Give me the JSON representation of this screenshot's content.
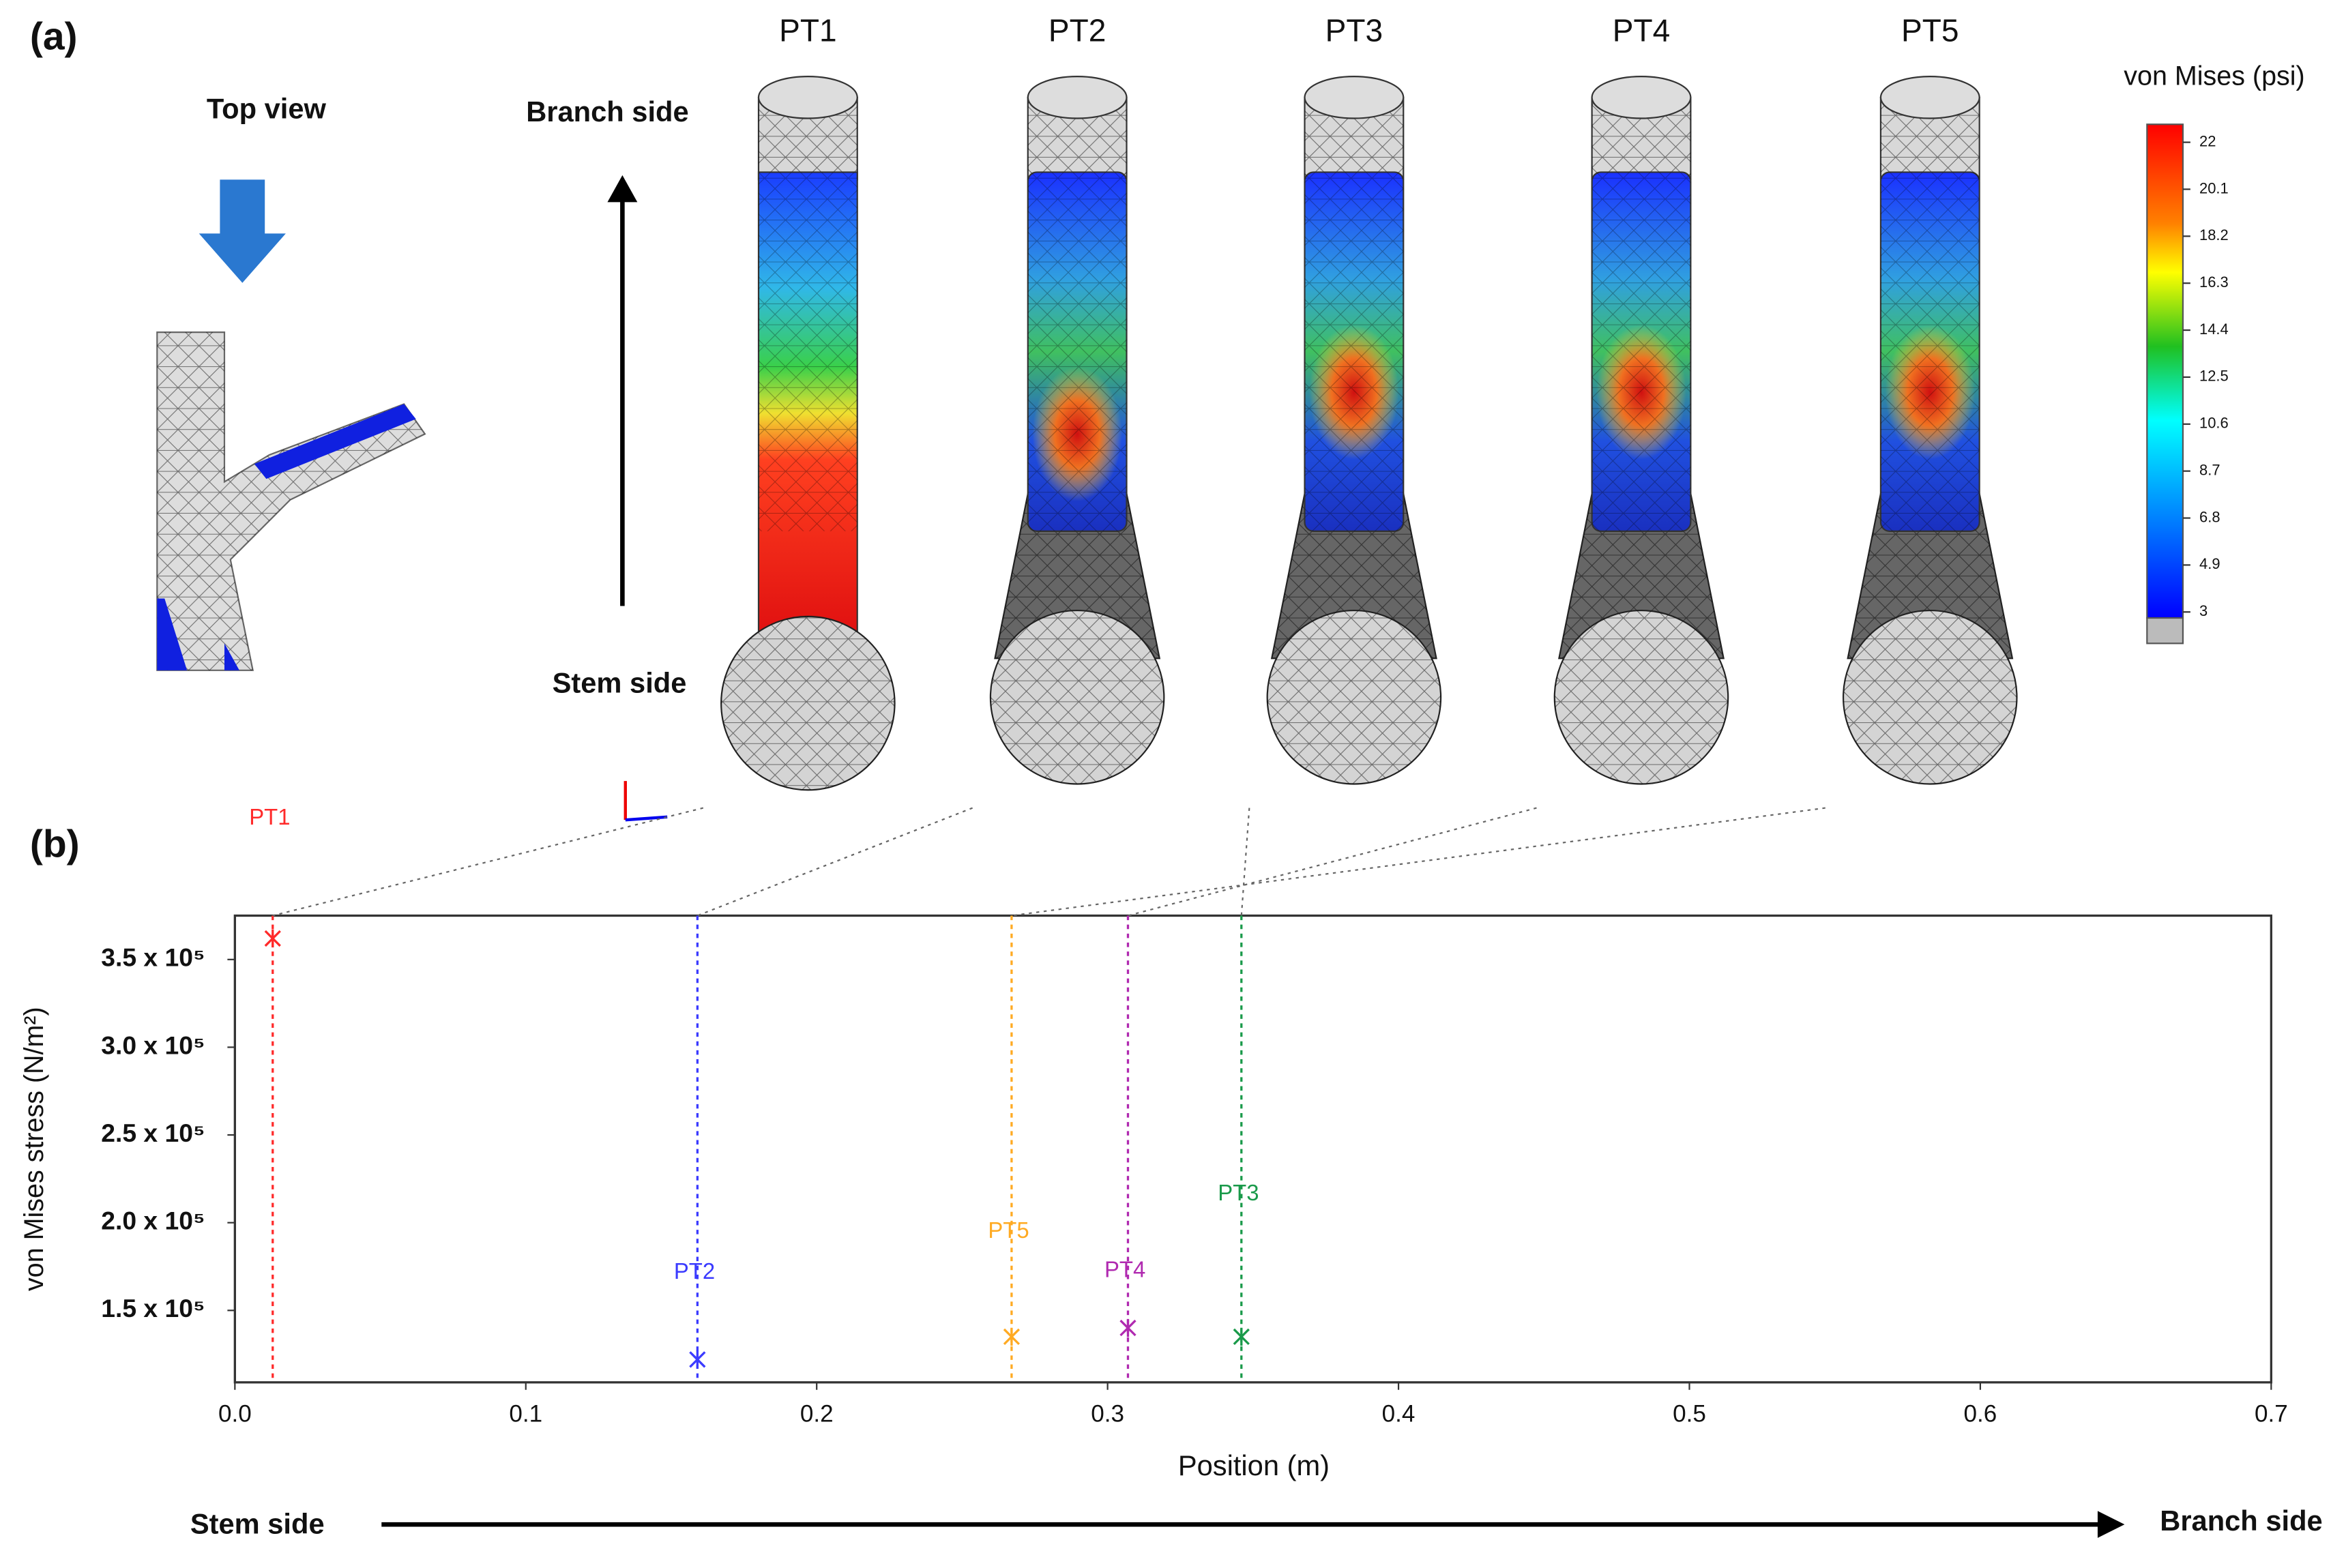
{
  "panel_a": {
    "label": "(a)",
    "top_view": "Top view",
    "branch_side": "Branch side",
    "stem_side": "Stem side",
    "points": [
      "PT1",
      "PT2",
      "PT3",
      "PT4",
      "PT5"
    ],
    "colorbar_title": "von Mises (psi)",
    "colorbar_ticks": [
      22,
      20.1,
      18.2,
      16.3,
      14.4,
      12.5,
      10.6,
      8.7,
      6.8,
      4.9,
      3
    ]
  },
  "chart_data": {
    "type": "scatter",
    "panel_label": "(b)",
    "x_label": "Position (m)",
    "y_label": "von Mises  stress (N/m²)",
    "xlim": [
      0,
      0.7
    ],
    "ylim": [
      109000,
      375000
    ],
    "xticks": [
      {
        "value": 0,
        "label": "0.0"
      },
      0.1,
      0.2,
      0.3,
      0.4,
      0.5,
      0.6,
      0.7
    ],
    "yticks": [
      {
        "value": 150000,
        "label": "1.5 x 10⁵"
      },
      {
        "value": 200000,
        "label": "2.0 x 10⁵"
      },
      {
        "value": 250000,
        "label": "2.5 x 10⁵"
      },
      {
        "value": 300000,
        "label": "3.0 x 10⁵"
      },
      {
        "value": 350000,
        "label": "3.5 x 10⁵"
      }
    ],
    "series": [
      {
        "name": "PT1",
        "color": "#ff2a2a",
        "x": [
          0.013
        ],
        "values": [
          362000
        ]
      },
      {
        "name": "PT2",
        "color": "#3b3bff",
        "x": [
          0.159
        ],
        "values": [
          122000
        ]
      },
      {
        "name": "PT3",
        "color": "#1a9a4a",
        "x": [
          0.346
        ],
        "values": [
          135000
        ]
      },
      {
        "name": "PT4",
        "color": "#b02ab0",
        "x": [
          0.307
        ],
        "values": [
          140000
        ]
      },
      {
        "name": "PT5",
        "color": "#ffaa22",
        "x": [
          0.267
        ],
        "values": [
          135000
        ]
      }
    ],
    "arrow_left": "Stem side",
    "arrow_right": "Branch side"
  }
}
